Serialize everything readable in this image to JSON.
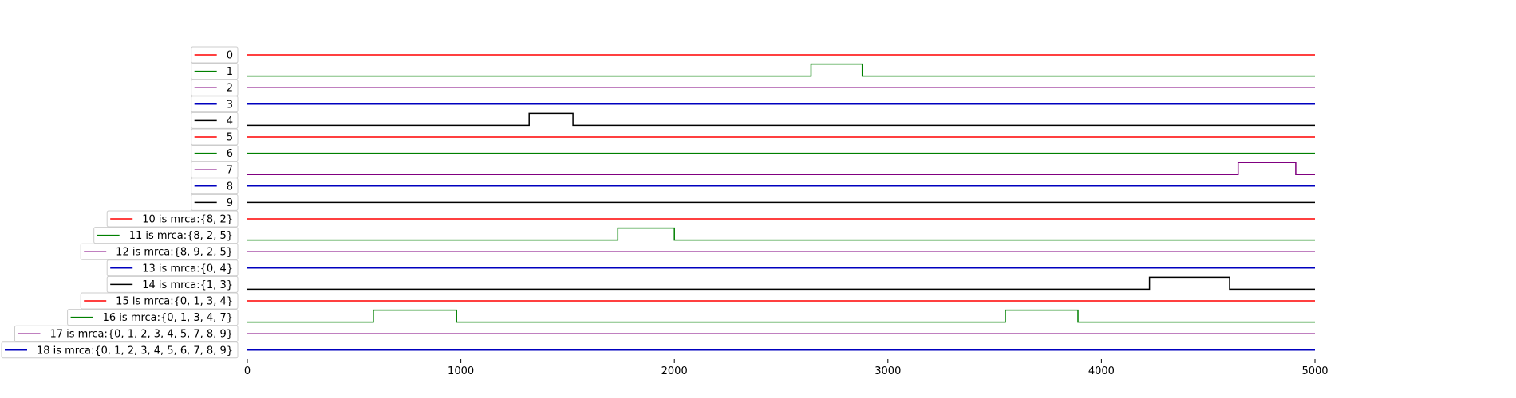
{
  "chart_data": {
    "type": "line",
    "xlim": [
      0,
      5000
    ],
    "x_ticks": [
      "0",
      "1000",
      "2000",
      "3000",
      "4000",
      "5000"
    ],
    "grid": false,
    "series": [
      {
        "name": "0",
        "color": "#ff0000",
        "pulses": []
      },
      {
        "name": "1",
        "color": "#008000",
        "pulses": [
          [
            2640,
            2880
          ]
        ]
      },
      {
        "name": "2",
        "color": "#800080",
        "pulses": []
      },
      {
        "name": "3",
        "color": "#0000bf",
        "pulses": []
      },
      {
        "name": "4",
        "color": "#000000",
        "pulses": [
          [
            1320,
            1525
          ]
        ]
      },
      {
        "name": "5",
        "color": "#ff0000",
        "pulses": []
      },
      {
        "name": "6",
        "color": "#008000",
        "pulses": []
      },
      {
        "name": "7",
        "color": "#800080",
        "pulses": [
          [
            4640,
            4910
          ]
        ]
      },
      {
        "name": "8",
        "color": "#0000bf",
        "pulses": []
      },
      {
        "name": "9",
        "color": "#000000",
        "pulses": []
      },
      {
        "name": "10 is mrca:{8, 2}",
        "color": "#ff0000",
        "pulses": []
      },
      {
        "name": "11 is mrca:{8, 2, 5}",
        "color": "#008000",
        "pulses": [
          [
            1735,
            2000
          ]
        ]
      },
      {
        "name": "12 is mrca:{8, 9, 2, 5}",
        "color": "#800080",
        "pulses": []
      },
      {
        "name": "13 is mrca:{0, 4}",
        "color": "#0000bf",
        "pulses": []
      },
      {
        "name": "14 is mrca:{1, 3}",
        "color": "#000000",
        "pulses": [
          [
            4225,
            4600
          ]
        ]
      },
      {
        "name": "15 is mrca:{0, 1, 3, 4}",
        "color": "#ff0000",
        "pulses": []
      },
      {
        "name": "16 is mrca:{0, 1, 3, 4, 7}",
        "color": "#008000",
        "pulses": [
          [
            590,
            980
          ],
          [
            3550,
            3890
          ]
        ]
      },
      {
        "name": "17 is mrca:{0, 1, 2, 3, 4, 5, 7, 8, 9}",
        "color": "#800080",
        "pulses": []
      },
      {
        "name": "18 is mrca:{0, 1, 2, 3, 4, 5, 6, 7, 8, 9}",
        "color": "#0000bf",
        "pulses": []
      }
    ]
  }
}
